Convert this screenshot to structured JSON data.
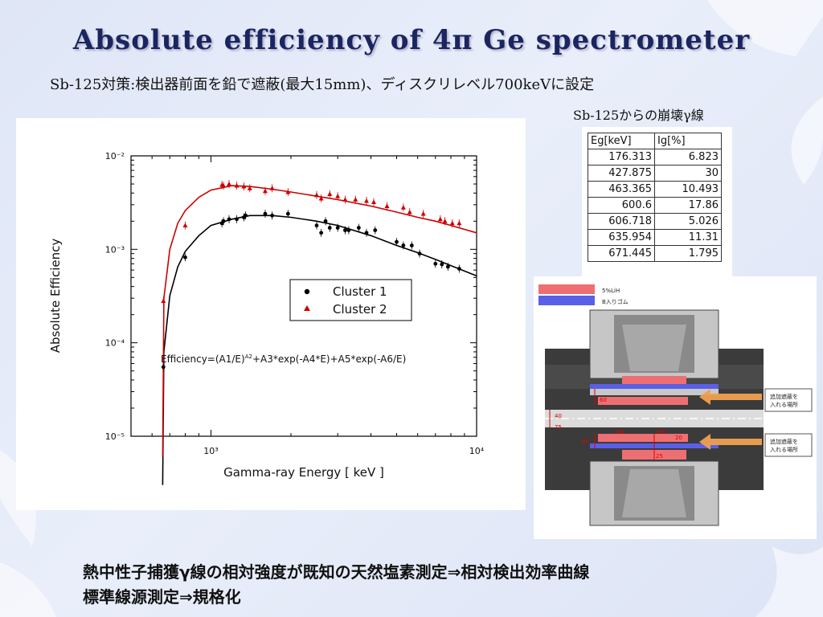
{
  "slide": {
    "title": "Absolute efficiency of 4π Ge spectrometer",
    "subtitle": "Sb-125対策:検出器前面を鉛で遮蔽(最大15mm)、ディスクリレベル700keVに設定",
    "table_caption": "Sb-125からの崩壊γ線",
    "bottom_line_1": "熱中性子捕獲γ線の相対強度が既知の天然塩素測定⇒相対検出効率曲線",
    "bottom_line_2": "標準線源測定⇒規格化"
  },
  "decay_table": {
    "headers": [
      "Eg[keV]",
      "Ig[%]"
    ],
    "rows": [
      [
        "176.313",
        "6.823"
      ],
      [
        "427.875",
        "30"
      ],
      [
        "463.365",
        "10.493"
      ],
      [
        "600.6",
        "17.86"
      ],
      [
        "606.718",
        "5.026"
      ],
      [
        "635.954",
        "11.31"
      ],
      [
        "671.445",
        "1.795"
      ]
    ]
  },
  "diagram": {
    "legend": [
      {
        "label": "5%LiH",
        "color": "#ee6f72"
      },
      {
        "label": "B入りゴム",
        "color": "#5a5fe8"
      }
    ],
    "callouts": [
      "追加遮蔽を\n入れる場所",
      "追加遮蔽を\n入れる場所"
    ],
    "dimension_labels": [
      "60",
      "40",
      "75",
      "60",
      "20",
      "100",
      "100",
      "25"
    ]
  },
  "chart_data": {
    "type": "scatter",
    "xlabel": "Gamma-ray Energy [ keV ]",
    "ylabel": "Absolute Efficiency",
    "xscale": "log",
    "yscale": "log",
    "xlim": [
      500,
      10000
    ],
    "ylim": [
      1e-05,
      0.01
    ],
    "x_ticks": [
      "10³",
      "10⁴"
    ],
    "y_ticks": [
      "10⁻⁵",
      "10⁻⁴",
      "10⁻³",
      "10⁻²"
    ],
    "annotation": "Efficiency=(A1/E)^A2+A3*exp(-A4*E)+A5*exp(-A6/E)",
    "legend_position": "center-right",
    "series": [
      {
        "name": "Cluster 1",
        "marker": "circle",
        "color": "#000000",
        "points": [
          [
            662,
            5.5e-05
          ],
          [
            800,
            0.00082
          ],
          [
            1100,
            0.0019
          ],
          [
            1115,
            0.002
          ],
          [
            1170,
            0.0021
          ],
          [
            1250,
            0.0021
          ],
          [
            1330,
            0.0022
          ],
          [
            1350,
            0.0023
          ],
          [
            1600,
            0.0024
          ],
          [
            1700,
            0.0023
          ],
          [
            1950,
            0.0024
          ],
          [
            2500,
            0.0018
          ],
          [
            2600,
            0.0015
          ],
          [
            2700,
            0.002
          ],
          [
            2800,
            0.0017
          ],
          [
            3000,
            0.0017
          ],
          [
            3200,
            0.0016
          ],
          [
            3300,
            0.0016
          ],
          [
            3600,
            0.0017
          ],
          [
            3850,
            0.0015
          ],
          [
            4150,
            0.0016
          ],
          [
            5000,
            0.0012
          ],
          [
            5300,
            0.0011
          ],
          [
            5700,
            0.0011
          ],
          [
            6100,
            0.0009
          ],
          [
            7000,
            0.0007
          ],
          [
            7400,
            0.00069
          ],
          [
            7800,
            0.00065
          ],
          [
            8600,
            0.00062
          ]
        ],
        "fit_curve": [
          [
            658,
            3e-06
          ],
          [
            665,
            8e-05
          ],
          [
            700,
            0.00032
          ],
          [
            750,
            0.00065
          ],
          [
            800,
            0.00095
          ],
          [
            900,
            0.0014
          ],
          [
            1000,
            0.0018
          ],
          [
            1200,
            0.0021
          ],
          [
            1400,
            0.0023
          ],
          [
            1700,
            0.0023
          ],
          [
            2000,
            0.0022
          ],
          [
            2500,
            0.002
          ],
          [
            3000,
            0.0018
          ],
          [
            4000,
            0.0014
          ],
          [
            5000,
            0.0011
          ],
          [
            6000,
            0.00092
          ],
          [
            7000,
            0.00078
          ],
          [
            8000,
            0.00067
          ],
          [
            10000,
            0.00052
          ]
        ]
      },
      {
        "name": "Cluster 2",
        "marker": "triangle",
        "color": "#cc0000",
        "points": [
          [
            662,
            0.00028
          ],
          [
            800,
            0.0018
          ],
          [
            1100,
            0.0049
          ],
          [
            1115,
            0.0048
          ],
          [
            1170,
            0.005
          ],
          [
            1250,
            0.0048
          ],
          [
            1330,
            0.0047
          ],
          [
            1400,
            0.0045
          ],
          [
            1600,
            0.0042
          ],
          [
            1700,
            0.0045
          ],
          [
            1950,
            0.0041
          ],
          [
            2500,
            0.0038
          ],
          [
            2600,
            0.0035
          ],
          [
            2800,
            0.0039
          ],
          [
            3000,
            0.0037
          ],
          [
            3200,
            0.0034
          ],
          [
            3500,
            0.0034
          ],
          [
            3850,
            0.0033
          ],
          [
            4100,
            0.0032
          ],
          [
            4600,
            0.0029
          ],
          [
            5300,
            0.0028
          ],
          [
            5600,
            0.0025
          ],
          [
            6300,
            0.0024
          ],
          [
            7300,
            0.0021
          ],
          [
            7600,
            0.002
          ],
          [
            8100,
            0.0019
          ],
          [
            8600,
            0.0019
          ]
        ],
        "fit_curve": [
          [
            658,
            6e-06
          ],
          [
            665,
            0.0003
          ],
          [
            700,
            0.001
          ],
          [
            750,
            0.0019
          ],
          [
            800,
            0.0026
          ],
          [
            900,
            0.0036
          ],
          [
            1000,
            0.0043
          ],
          [
            1200,
            0.0048
          ],
          [
            1400,
            0.0047
          ],
          [
            1700,
            0.0044
          ],
          [
            2000,
            0.0041
          ],
          [
            2500,
            0.0037
          ],
          [
            3000,
            0.0034
          ],
          [
            4000,
            0.0029
          ],
          [
            5000,
            0.0025
          ],
          [
            6000,
            0.0022
          ],
          [
            7000,
            0.002
          ],
          [
            8000,
            0.0018
          ],
          [
            10000,
            0.0015
          ]
        ]
      }
    ]
  }
}
